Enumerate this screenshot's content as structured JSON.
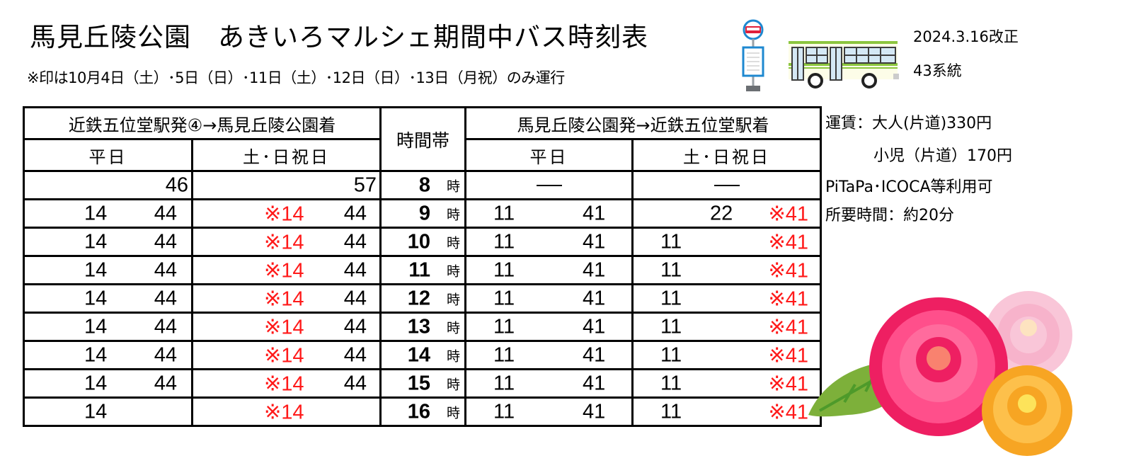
{
  "header": {
    "title": "馬見丘陵公園　あきいろマルシェ期間中バス時刻表",
    "note": "※印は10月4日（土）･5日（日）･11日（土）･12日（日）･13日（月祝）のみ運行",
    "revision": "2024.3.16改正",
    "route": "43系統"
  },
  "icons": {
    "bus_stop": "bus-stop-icon",
    "bus": "bus-illustration",
    "flowers": "dahlia-flowers-illustration"
  },
  "colors": {
    "special_mark": "#ff1a1a",
    "border": "#000000",
    "bus_green": "#8cc63f"
  },
  "timetable": {
    "outbound_header": "近鉄五位堂駅発④→馬見丘陵公園着",
    "inbound_header": "馬見丘陵公園発→近鉄五位堂駅着",
    "time_header": "時間帯",
    "weekday_label": "平日",
    "holiday_label": "土･日祝日",
    "hour_suffix": "時",
    "special_note_mark": "※",
    "rows": [
      {
        "hour": "8",
        "out_weekday": [
          "",
          "46"
        ],
        "out_holiday": [
          "",
          "57"
        ],
        "in_weekday": [
          "—",
          ""
        ],
        "in_holiday": [
          "—",
          ""
        ]
      },
      {
        "hour": "9",
        "out_weekday": [
          "14",
          "44"
        ],
        "out_holiday": [
          "※14",
          "44"
        ],
        "in_weekday": [
          "11",
          "41"
        ],
        "in_holiday": [
          "22",
          "※41"
        ]
      },
      {
        "hour": "10",
        "out_weekday": [
          "14",
          "44"
        ],
        "out_holiday": [
          "※14",
          "44"
        ],
        "in_weekday": [
          "11",
          "41"
        ],
        "in_holiday": [
          "11",
          "※41"
        ]
      },
      {
        "hour": "11",
        "out_weekday": [
          "14",
          "44"
        ],
        "out_holiday": [
          "※14",
          "44"
        ],
        "in_weekday": [
          "11",
          "41"
        ],
        "in_holiday": [
          "11",
          "※41"
        ]
      },
      {
        "hour": "12",
        "out_weekday": [
          "14",
          "44"
        ],
        "out_holiday": [
          "※14",
          "44"
        ],
        "in_weekday": [
          "11",
          "41"
        ],
        "in_holiday": [
          "11",
          "※41"
        ]
      },
      {
        "hour": "13",
        "out_weekday": [
          "14",
          "44"
        ],
        "out_holiday": [
          "※14",
          "44"
        ],
        "in_weekday": [
          "11",
          "41"
        ],
        "in_holiday": [
          "11",
          "※41"
        ]
      },
      {
        "hour": "14",
        "out_weekday": [
          "14",
          "44"
        ],
        "out_holiday": [
          "※14",
          "44"
        ],
        "in_weekday": [
          "11",
          "41"
        ],
        "in_holiday": [
          "11",
          "※41"
        ]
      },
      {
        "hour": "15",
        "out_weekday": [
          "14",
          "44"
        ],
        "out_holiday": [
          "※14",
          "44"
        ],
        "in_weekday": [
          "11",
          "41"
        ],
        "in_holiday": [
          "11",
          "※41"
        ]
      },
      {
        "hour": "16",
        "out_weekday": [
          "14",
          ""
        ],
        "out_holiday": [
          "※14",
          ""
        ],
        "in_weekday": [
          "11",
          "41"
        ],
        "in_holiday": [
          "11",
          "※41"
        ]
      }
    ]
  },
  "info": {
    "fare_adult": "運賃：大人(片道)330円",
    "fare_child": "小児（片道）170円",
    "ic_cards": "PiTaPa･ICOCA等利用可",
    "duration": "所要時間：約20分"
  }
}
